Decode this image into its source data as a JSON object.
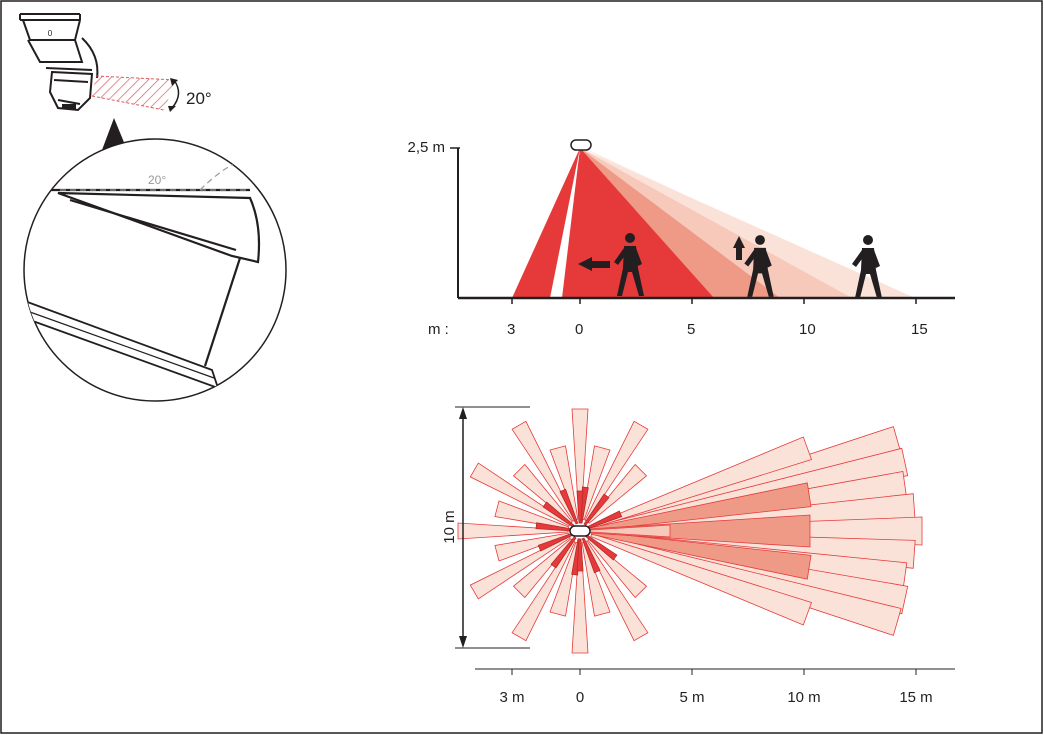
{
  "colors": {
    "ink": "#231f20",
    "zone_red": "#e63a3a",
    "zone_mid": "#ef9a86",
    "zone_light": "#f7c9bb",
    "zone_pale": "#fbe2d9",
    "hatch": "#e05a5a",
    "guide_gray": "#9a9a9a"
  },
  "tilt_detail": {
    "angle_label": "20°",
    "zoom_angle_label": "20°",
    "device_mark": "0"
  },
  "side_view": {
    "height_label": "2,5 m",
    "unit_label": "m :",
    "ticks": [
      "3",
      "0",
      "5",
      "10",
      "15"
    ]
  },
  "top_view": {
    "width_label": "10 m",
    "ticks": [
      "3 m",
      "0",
      "5 m",
      "10 m",
      "15 m"
    ]
  }
}
